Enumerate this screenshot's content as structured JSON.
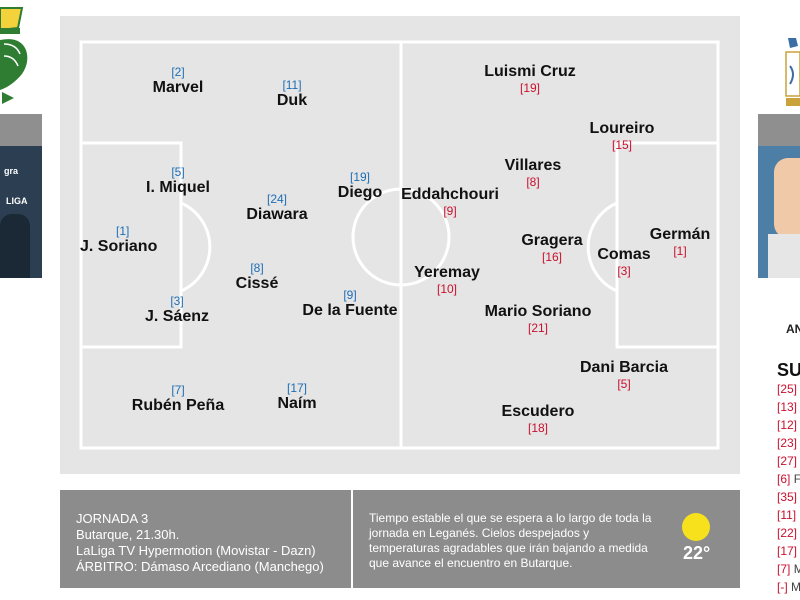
{
  "pitch": {
    "home_players": [
      {
        "number": "[2]",
        "name": "Marvel"
      },
      {
        "number": "[11]",
        "name": "Duk"
      },
      {
        "number": "[5]",
        "name": "I. Miquel"
      },
      {
        "number": "[24]",
        "name": "Diawara"
      },
      {
        "number": "[19]",
        "name": "Diego"
      },
      {
        "number": "[1]",
        "name": "J. Soriano"
      },
      {
        "number": "[8]",
        "name": "Cissé"
      },
      {
        "number": "[3]",
        "name": "J. Sáenz"
      },
      {
        "number": "[9]",
        "name": "De la Fuente"
      },
      {
        "number": "[7]",
        "name": "Rubén Peña"
      },
      {
        "number": "[17]",
        "name": "Naím"
      }
    ],
    "away_players": [
      {
        "number": "[19]",
        "name": "Luismi Cruz"
      },
      {
        "number": "[15]",
        "name": "Loureiro"
      },
      {
        "number": "[8]",
        "name": "Villares"
      },
      {
        "number": "[9]",
        "name": "Eddahchouri"
      },
      {
        "number": "[16]",
        "name": "Gragera"
      },
      {
        "number": "[1]",
        "name": "Germán"
      },
      {
        "number": "[3]",
        "name": "Comas"
      },
      {
        "number": "[10]",
        "name": "Yeremay"
      },
      {
        "number": "[21]",
        "name": "Mario Soriano"
      },
      {
        "number": "[5]",
        "name": "Dani Barcia"
      },
      {
        "number": "[18]",
        "name": "Escudero"
      }
    ]
  },
  "match_info": {
    "matchday": "JORNADA 3",
    "venue_time": "Butarque, 21.30h.",
    "tv": "LaLiga TV Hypermotion (Movistar - Dazn)",
    "referee": "ÁRBITRO: Dámaso Arcediano (Manchego)"
  },
  "weather": {
    "text": "Tiempo estable el que se espera a lo largo de toda la jornada en Leganés. Cielos despejados y temperaturas agradables que irán bajando a medida que avance el encuentro en Butarque.",
    "temperature": "22°",
    "icon": "sun-icon"
  },
  "right_panel": {
    "coach_prefix": "AN",
    "subs_heading_prefix": "SU",
    "subs": [
      {
        "num": "[25]",
        "name": ""
      },
      {
        "num": "[13]",
        "name": ""
      },
      {
        "num": "[12]",
        "name": ""
      },
      {
        "num": "[23]",
        "name": ""
      },
      {
        "num": "[27]",
        "name": ""
      },
      {
        "num": "[6]",
        "name": "F"
      },
      {
        "num": "[35]",
        "name": ""
      },
      {
        "num": "[11]",
        "name": ""
      },
      {
        "num": "[22]",
        "name": ""
      },
      {
        "num": "[17]",
        "name": ""
      },
      {
        "num": "[7]",
        "name": "M"
      },
      {
        "num": "[-]",
        "name": "M"
      }
    ]
  },
  "left_panel": {
    "photo_text_1": "gra",
    "photo_text_2": "LIGA"
  },
  "colors": {
    "home_number": "#1e6eb5",
    "away_number": "#c8102e",
    "pitch_background": "#e5e5e5",
    "info_background": "#8c8c8c",
    "sun": "#f7e11c"
  }
}
